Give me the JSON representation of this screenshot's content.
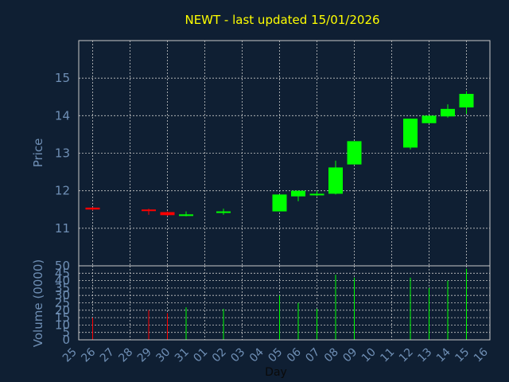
{
  "chart_data": [
    {
      "type": "candlestick",
      "title": "NEWT - last updated 15/01/2026",
      "ylabel": "Price",
      "ylim": [
        10,
        16
      ],
      "yticks": [
        11,
        12,
        13,
        14,
        15
      ],
      "grid": true,
      "up_color": "#00ff00",
      "down_color": "#ff0000",
      "x": [
        "25",
        "26",
        "27",
        "28",
        "29",
        "30",
        "31",
        "01",
        "02",
        "03",
        "04",
        "05",
        "06",
        "07",
        "08",
        "09",
        "10",
        "11",
        "12",
        "13",
        "14",
        "15",
        "16"
      ],
      "candles": [
        {
          "x": "26",
          "open": 11.55,
          "high": 11.56,
          "low": 11.48,
          "close": 11.5
        },
        {
          "x": "29",
          "open": 11.5,
          "high": 11.52,
          "low": 11.36,
          "close": 11.46
        },
        {
          "x": "30",
          "open": 11.43,
          "high": 11.45,
          "low": 11.33,
          "close": 11.35
        },
        {
          "x": "31",
          "open": 11.35,
          "high": 11.45,
          "low": 11.32,
          "close": 11.37
        },
        {
          "x": "02",
          "open": 11.42,
          "high": 11.52,
          "low": 11.36,
          "close": 11.45
        },
        {
          "x": "05",
          "open": 11.45,
          "high": 11.9,
          "low": 11.45,
          "close": 11.9
        },
        {
          "x": "06",
          "open": 11.85,
          "high": 12.0,
          "low": 11.72,
          "close": 12.0
        },
        {
          "x": "07",
          "open": 11.88,
          "high": 12.0,
          "low": 11.86,
          "close": 11.92
        },
        {
          "x": "08",
          "open": 11.92,
          "high": 12.8,
          "low": 11.9,
          "close": 12.62
        },
        {
          "x": "09",
          "open": 12.7,
          "high": 13.32,
          "low": 12.7,
          "close": 13.32
        },
        {
          "x": "12",
          "open": 13.15,
          "high": 13.92,
          "low": 13.1,
          "close": 13.92
        },
        {
          "x": "13",
          "open": 13.8,
          "high": 14.0,
          "low": 13.8,
          "close": 14.0
        },
        {
          "x": "14",
          "open": 13.98,
          "high": 14.3,
          "low": 13.95,
          "close": 14.18
        },
        {
          "x": "15",
          "open": 14.22,
          "high": 14.65,
          "low": 14.05,
          "close": 14.58
        }
      ]
    },
    {
      "type": "bar",
      "ylabel": "Volume (0000)",
      "xlabel": "Day",
      "ylim": [
        0,
        50
      ],
      "yticks": [
        0,
        5,
        10,
        15,
        20,
        25,
        30,
        35,
        40,
        45,
        50
      ],
      "grid": true,
      "x": [
        "25",
        "26",
        "27",
        "28",
        "29",
        "30",
        "31",
        "01",
        "02",
        "03",
        "04",
        "05",
        "06",
        "07",
        "08",
        "09",
        "10",
        "11",
        "12",
        "13",
        "14",
        "15",
        "16"
      ],
      "bars": [
        {
          "x": "26",
          "value": 15,
          "direction": "down"
        },
        {
          "x": "29",
          "value": 20,
          "direction": "down"
        },
        {
          "x": "30",
          "value": 18,
          "direction": "down"
        },
        {
          "x": "31",
          "value": 22,
          "direction": "up"
        },
        {
          "x": "02",
          "value": 21,
          "direction": "up"
        },
        {
          "x": "05",
          "value": 30,
          "direction": "up"
        },
        {
          "x": "06",
          "value": 25,
          "direction": "up"
        },
        {
          "x": "07",
          "value": 21,
          "direction": "up"
        },
        {
          "x": "08",
          "value": 44,
          "direction": "up"
        },
        {
          "x": "09",
          "value": 42,
          "direction": "up"
        },
        {
          "x": "12",
          "value": 42,
          "direction": "up"
        },
        {
          "x": "13",
          "value": 35,
          "direction": "up"
        },
        {
          "x": "14",
          "value": 40,
          "direction": "up"
        },
        {
          "x": "15",
          "value": 48,
          "direction": "up"
        }
      ]
    }
  ]
}
